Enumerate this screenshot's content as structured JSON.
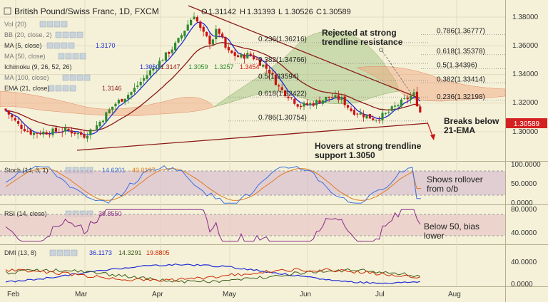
{
  "header": {
    "symbol": "British Pound/Swiss Franc, 1D, FXCM",
    "o_label": "O",
    "o_value": "1.31142",
    "h_label": "H",
    "h_value": "1.31393",
    "l_label": "L",
    "l_value": "1.30526",
    "c_label": "C",
    "c_value": "1.30589"
  },
  "legend": {
    "vol": "Vol (20)",
    "bb": "BB (20, close, 2)",
    "ma5": "MA (5, close)",
    "ma5_value": "1.3170",
    "ma50": "MA (50, close)",
    "ichimoku": "Ichimoku (9, 26, 52, 26)",
    "ichimoku_values": [
      "1.3060",
      "1.3147",
      "1.3059",
      "1.3257",
      "1.3454"
    ],
    "ma100": "MA (100, close)",
    "ema21": "EMA (21, close)",
    "ema21_value": "1.3146"
  },
  "price_axis": {
    "ticks": [
      "1.38000",
      "1.36000",
      "1.34000",
      "1.32000",
      "1.30000"
    ],
    "current_price": "1.30589"
  },
  "fib_labels": [
    {
      "text": "0.236(1.36216)",
      "price": 1.36216
    },
    {
      "text": "0.382(1.34766)",
      "price": 1.34766
    },
    {
      "text": "0.5(1.33594)",
      "price": 1.33594
    },
    {
      "text": "0.618(1.32422)",
      "price": 1.32422
    },
    {
      "text": "0.786(1.30754)",
      "price": 1.30754
    }
  ],
  "fib_labels_right": [
    {
      "text": "0.786(1.36777)",
      "price": 1.36777
    },
    {
      "text": "0.618(1.35378)",
      "price": 1.35378
    },
    {
      "text": "0.5(1.34396)",
      "price": 1.34396
    },
    {
      "text": "0.382(1.33414)",
      "price": 1.33414
    },
    {
      "text": "0.236(1.32198)",
      "price": 1.32198
    }
  ],
  "annotations": {
    "rejected_line1": "Rejected at strong",
    "rejected_line2": "trendline resistance",
    "breaks_line1": "Breaks below",
    "breaks_line2": "21-EMA",
    "hovers_line1": "Hovers at strong trendline",
    "hovers_line2": "support 1.3050",
    "stoch_note_line1": "Shows rollover",
    "stoch_note_line2": "from o/b",
    "rsi_note_line1": "Below 50, bias",
    "rsi_note_line2": "lower"
  },
  "stoch": {
    "label": "Stoch (14, 3, 1)",
    "k_value": "14.6201",
    "d_value": "40.0197",
    "ticks": [
      "100.0000",
      "50.0000",
      "0.0000"
    ]
  },
  "rsi": {
    "label": "RSI (14, close)",
    "value": "39.8550",
    "ticks": [
      "80.0000",
      "40.0000"
    ]
  },
  "dmi": {
    "label": "DMI (13, 8)",
    "values": [
      "36.1173",
      "14.3291",
      "19.8805"
    ],
    "ticks": [
      "40.0000",
      "0.0000"
    ]
  },
  "x_axis": {
    "labels": [
      "Feb",
      "Mar",
      "Apr",
      "May",
      "Jun",
      "Jul",
      "Aug"
    ]
  },
  "colors": {
    "bull": "#2e8b2e",
    "bear": "#cc1111",
    "ema": "#8b1a1a",
    "ma5": "#1d2bd6",
    "trendline": "#8b1a1a",
    "stoch_k": "#3b6fe0",
    "stoch_d": "#e07b20",
    "rsi": "#8a2a8a",
    "dmi_plus": "#3b5d1a",
    "dmi_minus": "#cc2a00",
    "adx": "#1d2bd6"
  },
  "chart_data": {
    "type": "candlestick",
    "title": "British Pound/Swiss Franc, 1D, FXCM",
    "x_range": [
      "Feb",
      "Aug"
    ],
    "ylim": [
      1.29,
      1.39
    ],
    "last_close": 1.30589,
    "price_path": [
      {
        "month": "Feb",
        "close": 1.315
      },
      {
        "month": "Feb",
        "close": 1.3
      },
      {
        "month": "Mar",
        "close": 1.298
      },
      {
        "month": "Mar",
        "close": 1.302
      },
      {
        "month": "Apr",
        "close": 1.35
      },
      {
        "month": "Apr",
        "close": 1.38
      },
      {
        "month": "May",
        "close": 1.355
      },
      {
        "month": "May",
        "close": 1.345
      },
      {
        "month": "Jun",
        "close": 1.32
      },
      {
        "month": "Jun",
        "close": 1.315
      },
      {
        "month": "Jul",
        "close": 1.308
      },
      {
        "month": "Jul",
        "close": 1.325
      },
      {
        "month": "Jul",
        "close": 1.3059
      }
    ],
    "indicators": {
      "stoch": {
        "k": 14.6201,
        "d": 40.0197,
        "ylim": [
          0,
          100
        ]
      },
      "rsi": {
        "value": 39.855,
        "ylim": [
          20,
          80
        ]
      },
      "dmi": {
        "plus_di": 14.3291,
        "minus_di": 19.8805,
        "adx": 36.1173
      }
    }
  }
}
